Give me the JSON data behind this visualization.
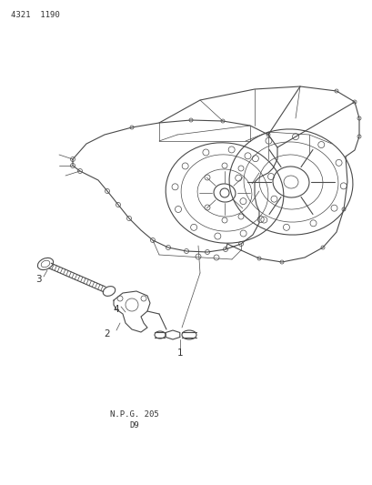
{
  "header_text": "4321  1190",
  "footer_text1": "N.P.G. 205",
  "footer_text2": "D9",
  "bg_color": "#ffffff",
  "line_color": "#4a4a4a",
  "label_color": "#333333",
  "header_fontsize": 6.5,
  "footer_fontsize": 6.5,
  "label_fontsize": 7.5,
  "fig_width": 4.1,
  "fig_height": 5.33,
  "dpi": 100
}
